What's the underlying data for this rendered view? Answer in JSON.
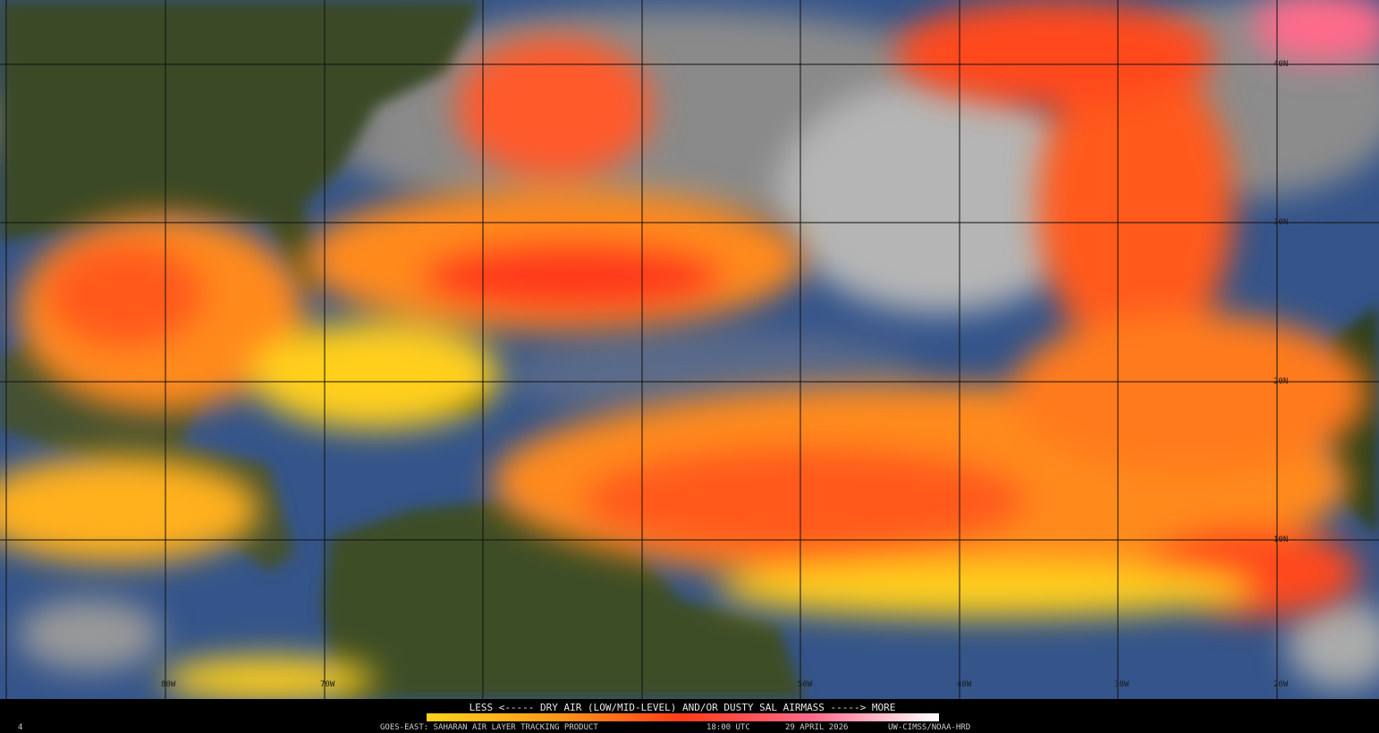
{
  "legend": {
    "caption": "LESS <----- DRY AIR (LOW/MID-LEVEL) AND/OR DUSTY SAL AIRMASS -----> MORE"
  },
  "footer": {
    "frame": "4",
    "product": "GOES-EAST: SAHARAN AIR LAYER TRACKING PRODUCT",
    "time": "18:00 UTC",
    "date": "29 APRIL 2026",
    "source": "UW-CIMSS/NOAA-HRD"
  },
  "map": {
    "lat_labels": [
      "40N",
      "30N",
      "20N",
      "10N"
    ],
    "lon_labels": [
      "80W",
      "70W",
      "50W",
      "40W",
      "30W",
      "20W"
    ]
  }
}
